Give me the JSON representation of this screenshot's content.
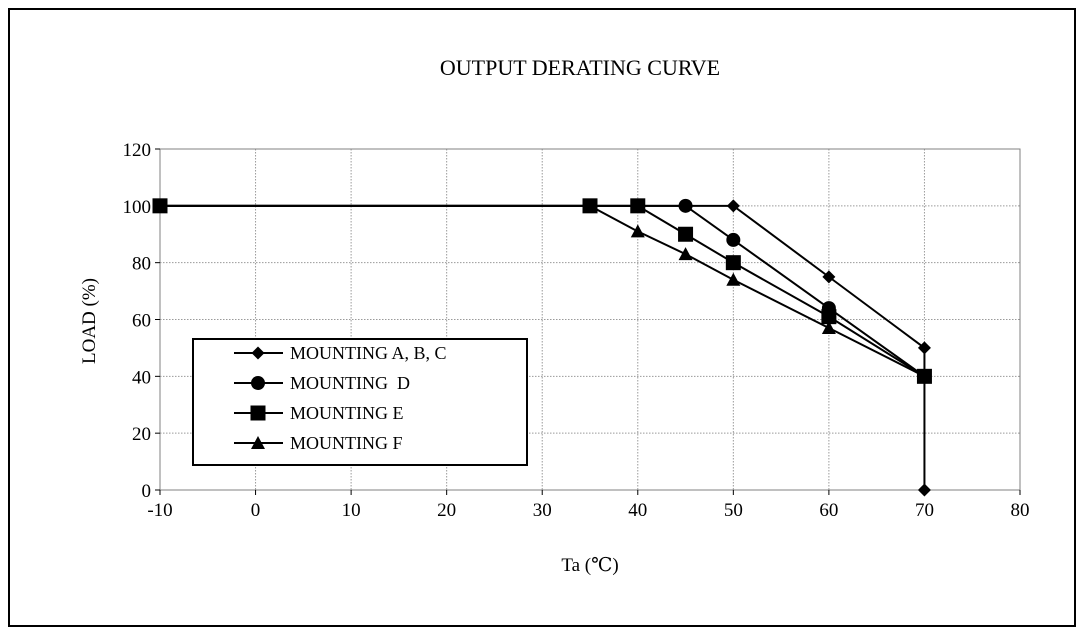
{
  "chart_data": {
    "type": "line",
    "title": "OUTPUT DERATING CURVE",
    "xlabel": "Ta (℃)",
    "ylabel": "LOAD (%)",
    "xlim": [
      -10,
      80
    ],
    "ylim": [
      0,
      120
    ],
    "x_ticks": [
      "-10",
      "0",
      "10",
      "20",
      "30",
      "40",
      "50",
      "60",
      "70",
      "80"
    ],
    "y_ticks": [
      "0",
      "20",
      "40",
      "60",
      "80",
      "100",
      "120"
    ],
    "grid": true,
    "legend_position": "bottom-left",
    "series": [
      {
        "name": "MOUNTING A, B, C",
        "marker": "diamond",
        "x": [
          -10,
          50,
          60,
          70,
          70
        ],
        "y": [
          100,
          100,
          75,
          50,
          0
        ]
      },
      {
        "name": "MOUNTING  D",
        "marker": "circle",
        "x": [
          -10,
          45,
          50,
          60,
          70
        ],
        "y": [
          100,
          100,
          88,
          64,
          40
        ]
      },
      {
        "name": "MOUNTING E",
        "marker": "square",
        "x": [
          -10,
          35,
          40,
          45,
          50,
          60,
          70
        ],
        "y": [
          100,
          100,
          100,
          90,
          80,
          61,
          40
        ]
      },
      {
        "name": "MOUNTING F",
        "marker": "triangle",
        "x": [
          -10,
          35,
          40,
          45,
          50,
          60,
          70
        ],
        "y": [
          100,
          100,
          91,
          83,
          74,
          57,
          40
        ]
      }
    ]
  }
}
